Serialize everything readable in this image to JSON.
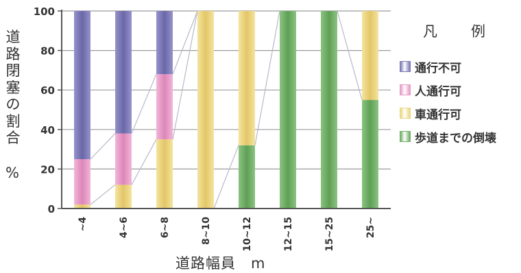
{
  "chart_data": {
    "type": "bar",
    "stacked": true,
    "ylabel": "道路閉塞の割合",
    "ylabel_unit": "%",
    "xlabel": "道路幅員　m",
    "legend_title": "凡　例",
    "legend_position": "right",
    "categories": [
      "~4",
      "4~6",
      "6~8",
      "8~10",
      "10~12",
      "12~15",
      "15~25",
      "25~"
    ],
    "ylim": [
      0,
      100
    ],
    "yticks": [
      "0",
      "20",
      "40",
      "60",
      "80",
      "100"
    ],
    "grid": true,
    "series": [
      {
        "name": "歩道までの倒壊",
        "color": "#6fae65",
        "values": [
          0,
          0,
          0,
          0,
          32,
          100,
          100,
          55
        ]
      },
      {
        "name": "車通行可",
        "color": "#ecd67e",
        "values": [
          2,
          12,
          35,
          100,
          68,
          0,
          0,
          45
        ]
      },
      {
        "name": "人通行可",
        "color": "#e79bc6",
        "values": [
          23,
          26,
          33,
          0,
          0,
          0,
          0,
          0
        ]
      },
      {
        "name": "通行不可",
        "color": "#7b78b6",
        "values": [
          75,
          62,
          32,
          0,
          0,
          0,
          0,
          0
        ]
      }
    ],
    "legend_order": [
      "通行不可",
      "人通行可",
      "車通行可",
      "歩道までの倒壊"
    ]
  }
}
